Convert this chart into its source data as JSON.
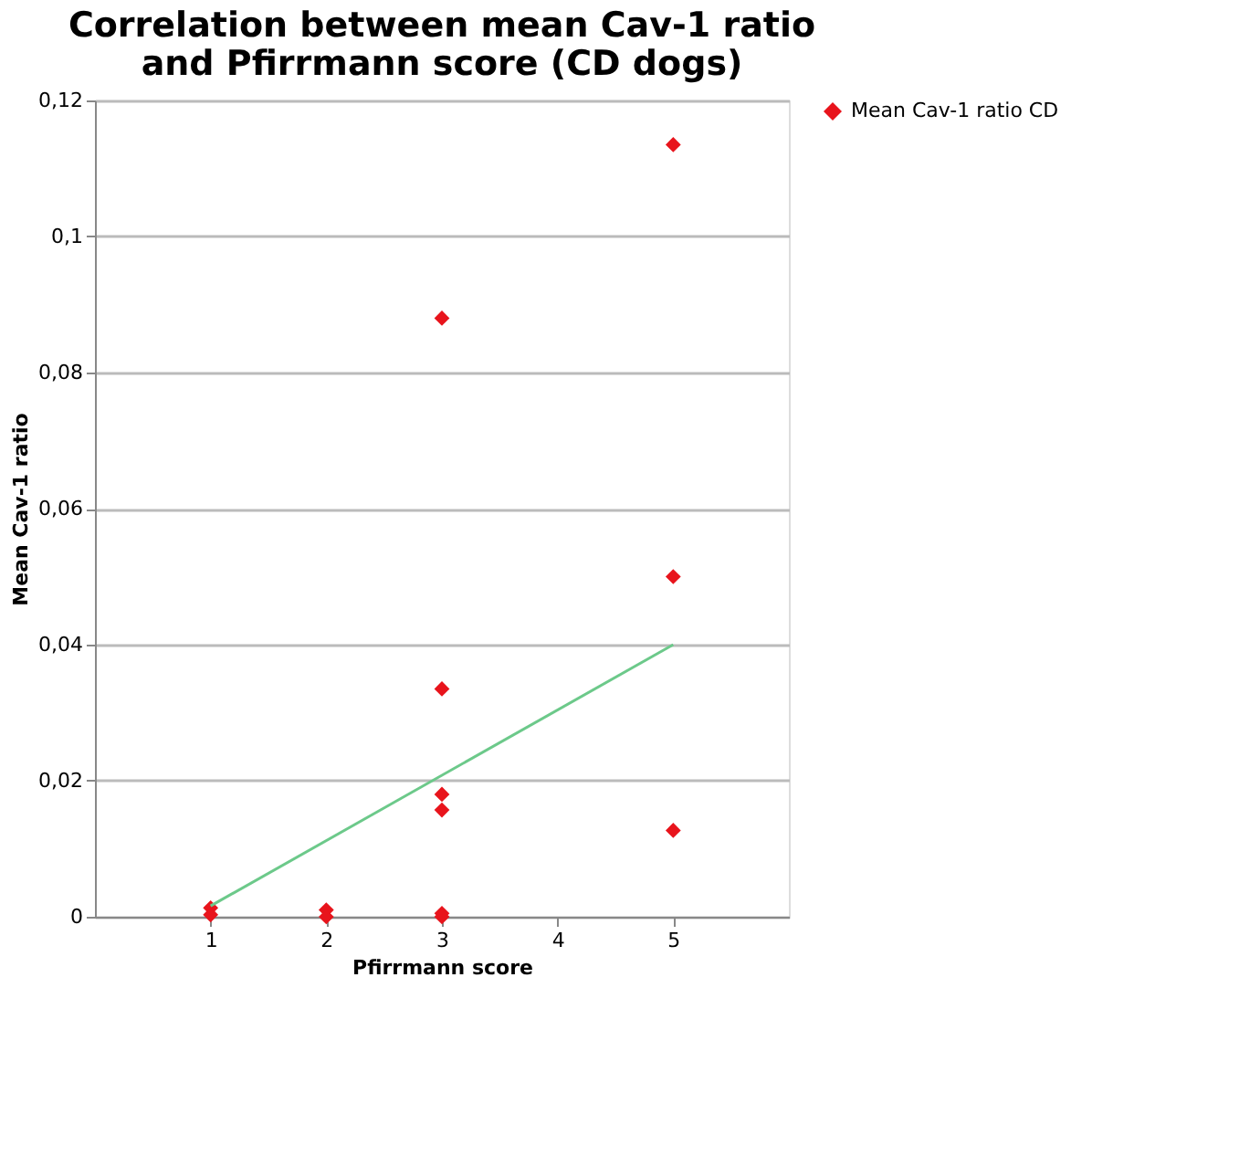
{
  "chart_data": {
    "type": "scatter",
    "title": [
      "Correlation between mean Cav-1 ratio",
      "and Pfirrmann score (CD dogs)"
    ],
    "xlabel": "Pfirrmann score",
    "ylabel": "Mean Cav-1 ratio",
    "xlim": [
      0,
      6
    ],
    "xticks": [
      1,
      2,
      3,
      4,
      5
    ],
    "ylim": [
      0,
      0.12
    ],
    "yticks": [
      0,
      {
        "value": 0.02,
        "label": "0,02"
      },
      {
        "value": 0.04,
        "label": "0,04"
      },
      {
        "value": 0.06,
        "label": "0,06"
      },
      {
        "value": 0.08,
        "label": "0,08"
      },
      {
        "value": 0.1,
        "label": "0,1"
      },
      {
        "value": 0.12,
        "label": "0,12"
      }
    ],
    "grid": "y",
    "legend": "right",
    "marker": "diamond",
    "series": [
      {
        "name": "Mean Cav-1 ratio CD",
        "color": "#e8141c",
        "x": [
          1,
          1,
          2,
          2,
          3,
          3,
          3,
          3,
          3,
          3,
          5,
          5,
          5
        ],
        "values": [
          0.0013,
          0.0003,
          0.001,
          0.0,
          0.088,
          0.0335,
          0.018,
          0.0157,
          0.0005,
          0.0,
          0.1135,
          0.05,
          0.0127
        ]
      },
      {
        "type": "line",
        "marker": "none",
        "color": "#6cc98a",
        "x": [
          1,
          5
        ],
        "values": [
          0.0016,
          0.04
        ]
      }
    ]
  }
}
